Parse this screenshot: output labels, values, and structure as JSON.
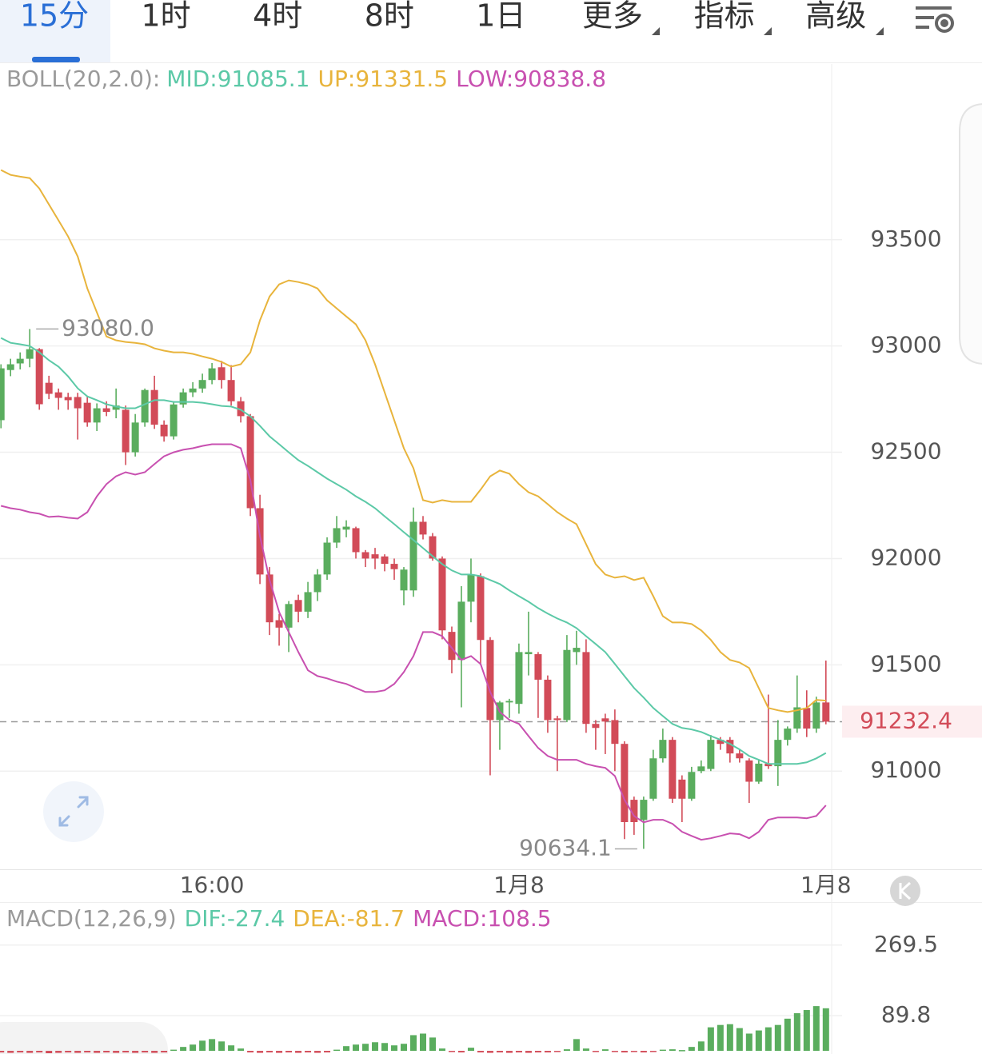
{
  "tabs": [
    "15分",
    "1时",
    "4时",
    "8时",
    "1日",
    "更多",
    "指标",
    "高级"
  ],
  "chart_data": [
    {
      "type": "candlestick",
      "indicator_label": "BOLL(20,2.0):",
      "categories": [
        null,
        null,
        null,
        null,
        null,
        null,
        null,
        null,
        null,
        null,
        null,
        null,
        null,
        null,
        null,
        null,
        null,
        null,
        null,
        null,
        null,
        null,
        "16:00",
        null,
        null,
        null,
        null,
        null,
        null,
        null,
        null,
        null,
        null,
        null,
        null,
        null,
        null,
        null,
        null,
        null,
        null,
        null,
        null,
        null,
        null,
        null,
        null,
        null,
        null,
        null,
        null,
        null,
        null,
        null,
        "1月8",
        null,
        null,
        null,
        null,
        null,
        null,
        null,
        null,
        null,
        null,
        null,
        null,
        null,
        null,
        null,
        null,
        null,
        null,
        null,
        null,
        null,
        null,
        null,
        null,
        null,
        null,
        null,
        null,
        null,
        null,
        null,
        "1月8"
      ],
      "open": [
        92651,
        92887,
        92918,
        92940,
        92985,
        92827,
        92782,
        92760,
        92760,
        92733,
        92640,
        92707,
        92700,
        92700,
        92500,
        92640,
        92793,
        92630,
        92575,
        92725,
        92782,
        92800,
        92840,
        92900,
        92840,
        92740,
        92670,
        92237,
        91925,
        91710,
        91675,
        91805,
        91750,
        91842,
        91925,
        92075,
        92136,
        92143,
        92030,
        92020,
        92010,
        91975,
        91850,
        91850,
        92173,
        92105,
        92000,
        91655,
        91523,
        91797,
        91917,
        91617,
        91240,
        91323,
        91316,
        91550,
        91550,
        91430,
        91248,
        91240,
        91560,
        91560,
        91222,
        91248,
        91240,
        91128,
        90865,
        90770,
        90870,
        91060,
        91147,
        90960,
        90870,
        91000,
        91010,
        91147,
        91147,
        91083,
        91050,
        90950,
        91035,
        91023,
        91147,
        91200,
        91297,
        91200,
        91323
      ],
      "high": [
        92914,
        92940,
        92970,
        93080,
        92990,
        92860,
        92800,
        92780,
        92780,
        92760,
        92730,
        92740,
        92800,
        92720,
        92680,
        92800,
        92860,
        92650,
        92740,
        92800,
        92830,
        92870,
        92920,
        92930,
        92910,
        92760,
        92680,
        92300,
        91960,
        91740,
        91800,
        91830,
        91890,
        91950,
        92100,
        92200,
        92180,
        92150,
        92040,
        92050,
        92020,
        92000,
        91960,
        92240,
        92200,
        92120,
        92010,
        91680,
        91870,
        92000,
        91930,
        91630,
        91330,
        91340,
        91600,
        91750,
        91560,
        91450,
        91260,
        91640,
        91660,
        91620,
        91240,
        91270,
        91290,
        91140,
        90880,
        90880,
        91100,
        91200,
        91160,
        90980,
        91020,
        91050,
        91170,
        91160,
        91160,
        91100,
        91060,
        91050,
        91360,
        91240,
        91210,
        91450,
        91380,
        91350,
        91520
      ],
      "low": [
        92613,
        92858,
        92890,
        92900,
        92700,
        92750,
        92700,
        92700,
        92560,
        92620,
        92600,
        92670,
        92660,
        92440,
        92480,
        92620,
        92610,
        92550,
        92560,
        92710,
        92760,
        92780,
        92820,
        92800,
        92720,
        92640,
        92200,
        91880,
        91640,
        91590,
        91560,
        91700,
        91720,
        91800,
        91900,
        92050,
        92100,
        92000,
        91960,
        91950,
        91940,
        91900,
        91780,
        91820,
        92090,
        91990,
        91620,
        91460,
        91300,
        91700,
        91500,
        90980,
        91100,
        91250,
        91270,
        91450,
        91250,
        91180,
        91000,
        91230,
        91500,
        91180,
        91100,
        91080,
        91000,
        90680,
        90700,
        90634.1,
        90860,
        91040,
        90850,
        90760,
        90860,
        90990,
        91000,
        91100,
        91040,
        91040,
        90850,
        90940,
        91010,
        90930,
        91120,
        91180,
        91160,
        91180,
        91220
      ],
      "close": [
        92895,
        92914,
        92940,
        92985,
        92726,
        92775,
        92756,
        92745,
        92707,
        92640,
        92707,
        92690,
        92720,
        92500,
        92640,
        92793,
        92630,
        92575,
        92725,
        92782,
        92800,
        92840,
        92895,
        92840,
        92740,
        92670,
        92237,
        91925,
        91700,
        91675,
        91786,
        91750,
        91842,
        91925,
        92075,
        92143,
        92150,
        92030,
        92000,
        92000,
        91975,
        91950,
        91948,
        92173,
        92113,
        92000,
        91662,
        91523,
        91797,
        91925,
        91617,
        91240,
        91323,
        91330,
        91560,
        91560,
        91430,
        91240,
        91240,
        91570,
        91580,
        91222,
        91203,
        91233,
        91128,
        90760,
        90760,
        90865,
        91060,
        91147,
        90870,
        90870,
        90996,
        91022,
        91147,
        91128,
        91083,
        91060,
        90950,
        91035,
        91023,
        91147,
        91200,
        91300,
        91200,
        91323,
        91232.4
      ],
      "up_color": "#5aad5e",
      "down_color": "#d24b58",
      "series": [
        {
          "name": "MID:91085.1",
          "color": "#5cc9a7",
          "values": [
            93038,
            93015,
            93008,
            93000,
            92970,
            92933,
            92903,
            92857,
            92801,
            92763,
            92745,
            92726,
            92715,
            92707,
            92707,
            92726,
            92745,
            92745,
            92737,
            92737,
            92737,
            92733,
            92726,
            92718,
            92715,
            92700,
            92669,
            92624,
            92575,
            92538,
            92500,
            92463,
            92436,
            92406,
            92376,
            92350,
            92324,
            92293,
            92267,
            92237,
            92199,
            92162,
            92124,
            92087,
            92049,
            92011,
            91974,
            91944,
            91925,
            91925,
            91917,
            91899,
            91880,
            91850,
            91823,
            91797,
            91767,
            91741,
            91718,
            91699,
            91673,
            91635,
            91598,
            91560,
            91504,
            91447,
            91391,
            91346,
            91297,
            91259,
            91222,
            91203,
            91196,
            91184,
            91165,
            91147,
            91128,
            91102,
            91071,
            91053,
            91034,
            91034,
            91034,
            91034,
            91041,
            91060,
            91085.1
          ]
        },
        {
          "name": "UP:91331.5",
          "color": "#e8b43c",
          "values": [
            93828,
            93805,
            93797,
            93790,
            93741,
            93666,
            93591,
            93515,
            93421,
            93271,
            93158,
            93045,
            93027,
            93019,
            93015,
            93008,
            92989,
            92978,
            92970,
            92970,
            92963,
            92951,
            92940,
            92925,
            92903,
            92914,
            92970,
            93121,
            93233,
            93290,
            93309,
            93301,
            93290,
            93271,
            93215,
            93177,
            93139,
            93102,
            93027,
            92914,
            92782,
            92651,
            92519,
            92425,
            92275,
            92263,
            92275,
            92267,
            92267,
            92267,
            92324,
            92387,
            92414,
            92399,
            92350,
            92312,
            92293,
            92256,
            92218,
            92188,
            92162,
            92068,
            91974,
            91925,
            91910,
            91917,
            91899,
            91910,
            91823,
            91729,
            91699,
            91699,
            91692,
            91662,
            91617,
            91560,
            91523,
            91511,
            91485,
            91391,
            91297,
            91286,
            91278,
            91286,
            91297,
            91335,
            91331.5
          ]
        },
        {
          "name": "LOW:90838.8",
          "color": "#c850b0",
          "values": [
            92248,
            92237,
            92230,
            92218,
            92211,
            92196,
            92199,
            92192,
            92188,
            92218,
            92293,
            92350,
            92387,
            92406,
            92395,
            92406,
            92444,
            92481,
            92500,
            92512,
            92519,
            92530,
            92538,
            92538,
            92538,
            92519,
            92369,
            92105,
            91899,
            91748,
            91654,
            91560,
            91474,
            91447,
            91436,
            91421,
            91410,
            91391,
            91372,
            91372,
            91380,
            91410,
            91466,
            91541,
            91654,
            91654,
            91635,
            91579,
            91523,
            91541,
            91504,
            91372,
            91278,
            91241,
            91222,
            91165,
            91109,
            91071,
            91053,
            91053,
            91053,
            91034,
            91023,
            91015,
            90977,
            90865,
            90789,
            90759,
            90771,
            90771,
            90752,
            90714,
            90695,
            90677,
            90684,
            90695,
            90707,
            90703,
            90684,
            90714,
            90771,
            90782,
            90782,
            90782,
            90778,
            90789,
            90838.8
          ]
        }
      ],
      "ylim": [
        90538,
        94327
      ],
      "yticks": [
        91000,
        91500,
        92000,
        92500,
        93000,
        93500
      ],
      "grid": true,
      "last_price": 91232.4,
      "max_label": {
        "value": 93080,
        "label": "93080.0"
      },
      "min_label": 90634.1
    },
    {
      "type": "bar",
      "indicator_label": "MACD(12,26,9)",
      "legend": [
        {
          "text": "DIF:-27.4",
          "color": "#5cc9a7"
        },
        {
          "text": "DEA:-81.7",
          "color": "#e8b43c"
        },
        {
          "text": "MACD:108.5",
          "color": "#c850b0"
        }
      ],
      "values": [
        -4,
        -5,
        -4,
        -5,
        -4,
        -6,
        -5,
        -4,
        -5,
        -4,
        -5,
        -4,
        -5,
        -4,
        -5,
        -4,
        -5,
        -4,
        3,
        10,
        16,
        26,
        30,
        24,
        14,
        6,
        -4,
        -5,
        -4,
        -5,
        -4,
        -5,
        -4,
        -5,
        -4,
        3,
        12,
        16,
        18,
        22,
        20,
        14,
        18,
        40,
        44,
        34,
        6,
        -3,
        -4,
        8,
        -4,
        -5,
        -4,
        -5,
        -4,
        -5,
        -4,
        -4,
        -3,
        4,
        30,
        6,
        -3,
        4,
        -3,
        -4,
        -3,
        -4,
        -3,
        3,
        4,
        2,
        10,
        24,
        60,
        66,
        68,
        58,
        44,
        52,
        60,
        66,
        82,
        96,
        104,
        114,
        108.5
      ],
      "up_color": "#5aad5e",
      "down_color": "#d24b58",
      "ylim": [
        -8,
        375
      ],
      "yticks": [
        89.8,
        269.5
      ],
      "grid": true
    }
  ]
}
